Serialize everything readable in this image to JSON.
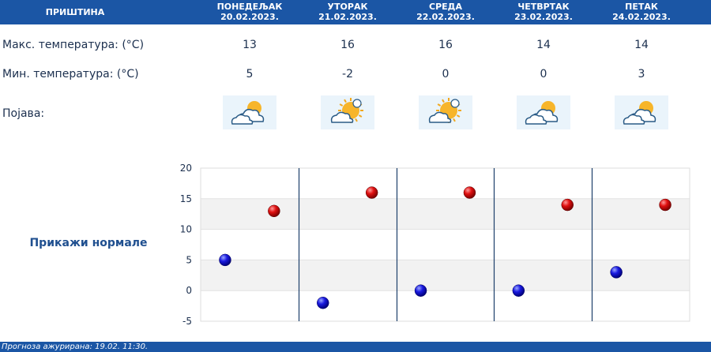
{
  "header": {
    "city": "ПРИШТИНА"
  },
  "days": [
    {
      "name": "ПОНЕДЕЉАК",
      "date": "20.02.2023.",
      "max": "13",
      "min": "5",
      "icon": "partly-cloudy-icon"
    },
    {
      "name": "УТОРАК",
      "date": "21.02.2023.",
      "max": "16",
      "min": "-2",
      "icon": "mostly-sunny-icon"
    },
    {
      "name": "СРЕДА",
      "date": "22.02.2023.",
      "max": "16",
      "min": "0",
      "icon": "mostly-sunny-icon"
    },
    {
      "name": "ЧЕТВРТАК",
      "date": "23.02.2023.",
      "max": "14",
      "min": "0",
      "icon": "partly-cloudy-icon"
    },
    {
      "name": "ПЕТАК",
      "date": "24.02.2023.",
      "max": "14",
      "min": "3",
      "icon": "partly-cloudy-icon"
    }
  ],
  "rows": {
    "max_label": "Макс. температура: (°C)",
    "min_label": "Мин. температура: (°C)",
    "phenomenon_label": "Појава:"
  },
  "normals_link": "Прикажи нормале",
  "footer": {
    "label": "Прогноза ажурирана:",
    "value": "19.02. 11:30."
  },
  "chart_data": {
    "type": "scatter",
    "categories": [
      "20.02.2023.",
      "21.02.2023.",
      "22.02.2023.",
      "23.02.2023.",
      "24.02.2023."
    ],
    "series": [
      {
        "values": [
          13,
          16,
          16,
          14,
          14
        ],
        "color": "#cc0000"
      },
      {
        "values": [
          5,
          -2,
          0,
          0,
          3
        ],
        "color": "#0000cc"
      }
    ],
    "yticks": [
      "20",
      "15",
      "10",
      "5",
      "0",
      "-5"
    ],
    "ylim": [
      -5,
      20
    ],
    "grid": "alternating horizontal bands"
  }
}
